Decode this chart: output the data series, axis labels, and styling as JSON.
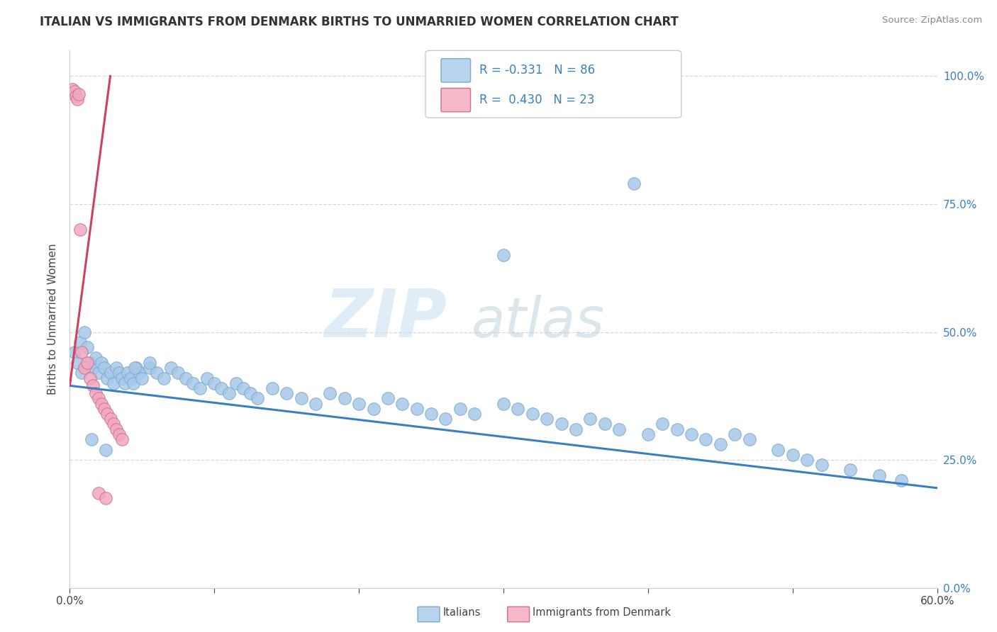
{
  "title": "ITALIAN VS IMMIGRANTS FROM DENMARK BIRTHS TO UNMARRIED WOMEN CORRELATION CHART",
  "source": "Source: ZipAtlas.com",
  "ylabel": "Births to Unmarried Women",
  "r_italian": -0.331,
  "n_italian": 86,
  "r_denmark": 0.43,
  "n_denmark": 23,
  "background_color": "#ffffff",
  "grid_color": "#d8d8d8",
  "watermark_zip": "ZIP",
  "watermark_atlas": "atlas",
  "blue_dot_color": "#a8c8e8",
  "pink_dot_color": "#f0a8c0",
  "blue_dot_edge": "#7aaad0",
  "pink_dot_edge": "#d07090",
  "blue_line_color": "#3a80c0",
  "pink_line_color": "#d04060",
  "xmin": 0.0,
  "xmax": 0.6,
  "ymin": 0.0,
  "ymax": 1.05,
  "ital_trend_x": [
    0.0,
    0.6
  ],
  "ital_trend_y": [
    0.395,
    0.195
  ],
  "den_trend_x": [
    0.0,
    0.028
  ],
  "den_trend_y": [
    0.395,
    1.0
  ],
  "italian_x": [
    0.003,
    0.005,
    0.007,
    0.008,
    0.01,
    0.012,
    0.014,
    0.016,
    0.018,
    0.02,
    0.022,
    0.024,
    0.026,
    0.028,
    0.03,
    0.032,
    0.034,
    0.036,
    0.038,
    0.04,
    0.042,
    0.044,
    0.046,
    0.048,
    0.05,
    0.055,
    0.06,
    0.065,
    0.07,
    0.075,
    0.08,
    0.085,
    0.09,
    0.095,
    0.1,
    0.105,
    0.11,
    0.115,
    0.12,
    0.125,
    0.13,
    0.14,
    0.15,
    0.16,
    0.17,
    0.18,
    0.19,
    0.2,
    0.21,
    0.22,
    0.23,
    0.24,
    0.25,
    0.26,
    0.27,
    0.28,
    0.3,
    0.31,
    0.32,
    0.33,
    0.34,
    0.35,
    0.36,
    0.37,
    0.38,
    0.4,
    0.41,
    0.42,
    0.43,
    0.44,
    0.45,
    0.46,
    0.47,
    0.49,
    0.5,
    0.51,
    0.52,
    0.54,
    0.56,
    0.575,
    0.045,
    0.055,
    0.3,
    0.39,
    0.015,
    0.025
  ],
  "italian_y": [
    0.46,
    0.44,
    0.48,
    0.42,
    0.5,
    0.47,
    0.44,
    0.43,
    0.45,
    0.42,
    0.44,
    0.43,
    0.41,
    0.42,
    0.4,
    0.43,
    0.42,
    0.41,
    0.4,
    0.42,
    0.41,
    0.4,
    0.43,
    0.42,
    0.41,
    0.43,
    0.42,
    0.41,
    0.43,
    0.42,
    0.41,
    0.4,
    0.39,
    0.41,
    0.4,
    0.39,
    0.38,
    0.4,
    0.39,
    0.38,
    0.37,
    0.39,
    0.38,
    0.37,
    0.36,
    0.38,
    0.37,
    0.36,
    0.35,
    0.37,
    0.36,
    0.35,
    0.34,
    0.33,
    0.35,
    0.34,
    0.36,
    0.35,
    0.34,
    0.33,
    0.32,
    0.31,
    0.33,
    0.32,
    0.31,
    0.3,
    0.32,
    0.31,
    0.3,
    0.29,
    0.28,
    0.3,
    0.29,
    0.27,
    0.26,
    0.25,
    0.24,
    0.23,
    0.22,
    0.21,
    0.43,
    0.44,
    0.65,
    0.79,
    0.29,
    0.27
  ],
  "denmark_x": [
    0.002,
    0.003,
    0.004,
    0.005,
    0.006,
    0.007,
    0.008,
    0.01,
    0.012,
    0.014,
    0.016,
    0.018,
    0.02,
    0.022,
    0.024,
    0.026,
    0.028,
    0.03,
    0.032,
    0.034,
    0.036,
    0.02,
    0.025
  ],
  "denmark_y": [
    0.975,
    0.97,
    0.96,
    0.955,
    0.965,
    0.7,
    0.46,
    0.43,
    0.44,
    0.41,
    0.395,
    0.38,
    0.37,
    0.36,
    0.35,
    0.34,
    0.33,
    0.32,
    0.31,
    0.3,
    0.29,
    0.185,
    0.175
  ]
}
